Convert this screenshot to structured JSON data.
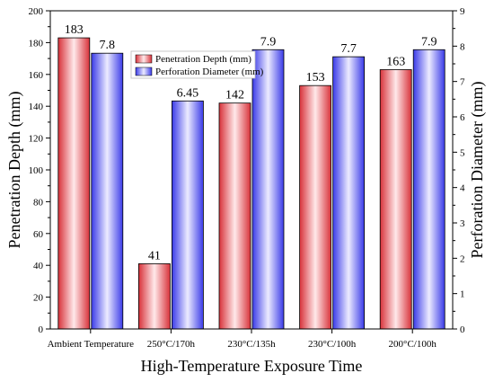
{
  "chart_data": {
    "type": "bar",
    "categories": [
      "Ambient Temperature",
      "250°C/170h",
      "230°C/135h",
      "230°C/100h",
      "200°C/100h"
    ],
    "series": [
      {
        "name": "Penetration Depth (mm)",
        "axis": "left",
        "values": [
          183,
          41,
          142,
          153,
          163
        ],
        "labels": [
          "183",
          "41",
          "142",
          "153",
          "163"
        ],
        "color": "#e8434a"
      },
      {
        "name": "Perforation Diameter (mm)",
        "axis": "right",
        "values": [
          7.8,
          6.45,
          7.9,
          7.7,
          7.9
        ],
        "labels": [
          "7.8",
          "6.45",
          "7.9",
          "7.7",
          "7.9"
        ],
        "color": "#4b4cf2"
      }
    ],
    "xlabel": "High-Temperature Exposure Time",
    "ylabel": "Penetration Depth (mm)",
    "y2label": "Perforation Diameter (mm)",
    "ylim": [
      0,
      200
    ],
    "yticks": [
      0,
      20,
      40,
      60,
      80,
      100,
      120,
      140,
      160,
      180,
      200
    ],
    "y2lim": [
      0,
      9
    ],
    "y2ticks": [
      0,
      1,
      2,
      3,
      4,
      5,
      6,
      7,
      8,
      9
    ],
    "legend_position": "top-center",
    "grid": false
  }
}
